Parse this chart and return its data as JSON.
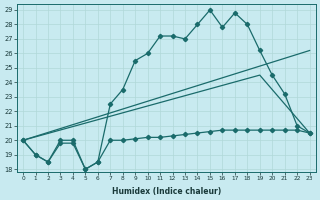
{
  "xlabel": "Humidex (Indice chaleur)",
  "bg_color": "#c8eaf0",
  "line_color": "#1a6b6b",
  "grid_color": "#b0d8d8",
  "xlim_min": -0.5,
  "xlim_max": 23.5,
  "ylim_min": 17.8,
  "ylim_max": 29.4,
  "yticks": [
    18,
    19,
    20,
    21,
    22,
    23,
    24,
    25,
    26,
    27,
    28,
    29
  ],
  "xticks": [
    0,
    1,
    2,
    3,
    4,
    5,
    6,
    7,
    8,
    9,
    10,
    11,
    12,
    13,
    14,
    15,
    16,
    17,
    18,
    19,
    20,
    21,
    22,
    23
  ],
  "series1_x": [
    0,
    1,
    2,
    3,
    4,
    5,
    6,
    7,
    8,
    9,
    10,
    11,
    12,
    13,
    14,
    15,
    16,
    17,
    18,
    19,
    20,
    21,
    22,
    23
  ],
  "series1_y": [
    20.0,
    19.0,
    18.5,
    20.0,
    20.0,
    18.0,
    18.5,
    22.5,
    23.5,
    25.5,
    26.0,
    27.2,
    27.2,
    27.0,
    28.0,
    29.0,
    27.8,
    28.8,
    28.0,
    26.2,
    24.5,
    23.2,
    21.0,
    20.5
  ],
  "series2_x": [
    0,
    1,
    2,
    3,
    4,
    5,
    6,
    7,
    8,
    9,
    10,
    11,
    12,
    13,
    14,
    15,
    16,
    17,
    18,
    19,
    20,
    21,
    22,
    23
  ],
  "series2_y": [
    20.0,
    19.0,
    18.5,
    19.8,
    19.8,
    18.0,
    18.5,
    20.0,
    20.0,
    20.1,
    20.2,
    20.2,
    20.3,
    20.4,
    20.5,
    20.6,
    20.7,
    20.7,
    20.7,
    20.7,
    20.7,
    20.7,
    20.7,
    20.5
  ],
  "series3_x": [
    0,
    19,
    23
  ],
  "series3_y": [
    20.0,
    24.5,
    20.5
  ],
  "series4_x": [
    0,
    23
  ],
  "series4_y": [
    20.0,
    26.2
  ]
}
